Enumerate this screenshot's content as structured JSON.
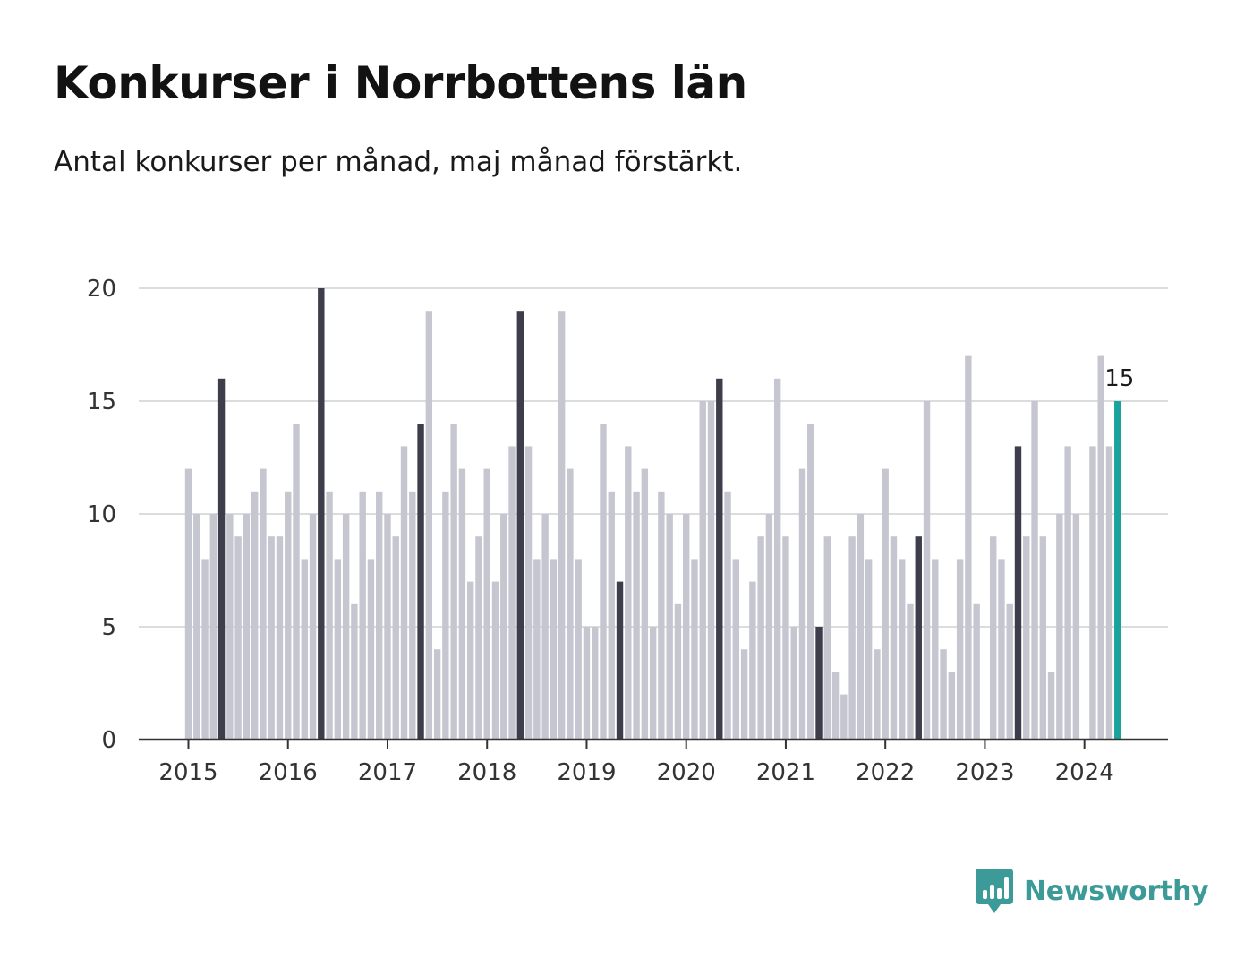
{
  "title": "Konkurser i Norrbottens län",
  "subtitle": "Antal konkurser per månad, maj månad förstärkt.",
  "brand": {
    "name": "Newsworthy",
    "color": "#3c9b99",
    "icon": "bar-chart-speech-bubble-icon"
  },
  "colors": {
    "bar": "#c6c6d0",
    "highlight": "#3d3d4b",
    "latest": "#1aa39b",
    "grid": "#dcdcdc",
    "axis": "#333333"
  },
  "chart_data": {
    "type": "bar",
    "title": "Konkurser i Norrbottens län",
    "subtitle": "Antal konkurser per månad, maj månad förstärkt.",
    "xlabel": "",
    "ylabel": "",
    "ylim": [
      0,
      20
    ],
    "yticks": [
      0,
      5,
      10,
      15,
      20
    ],
    "xticks": [
      "2015",
      "2016",
      "2017",
      "2018",
      "2019",
      "2020",
      "2021",
      "2022",
      "2023",
      "2024"
    ],
    "start": "2015-01",
    "end": "2024-05",
    "grid": true,
    "highlight": "May of each year",
    "latest_label": "15",
    "series": [
      {
        "values": [
          12,
          10,
          8,
          10,
          16,
          10,
          9,
          10,
          11,
          12,
          9,
          9,
          11,
          14,
          8,
          10,
          20,
          11,
          8,
          10,
          6,
          11,
          8,
          11,
          10,
          9,
          13,
          11,
          14,
          19,
          4,
          11,
          14,
          12,
          7,
          9,
          12,
          7,
          10,
          13,
          19,
          13,
          8,
          10,
          8,
          19,
          12,
          8,
          5,
          5,
          14,
          11,
          7,
          13,
          11,
          12,
          5,
          11,
          10,
          6,
          10,
          8,
          15,
          15,
          16,
          11,
          8,
          4,
          7,
          9,
          10,
          16,
          9,
          5,
          12,
          14,
          5,
          9,
          3,
          2,
          9,
          10,
          8,
          4,
          12,
          9,
          8,
          6,
          9,
          15,
          8,
          4,
          3,
          8,
          17,
          6,
          0,
          9,
          8,
          6,
          13,
          9,
          15,
          9,
          3,
          10,
          13,
          10,
          0,
          13,
          17,
          13,
          15
        ]
      }
    ]
  }
}
